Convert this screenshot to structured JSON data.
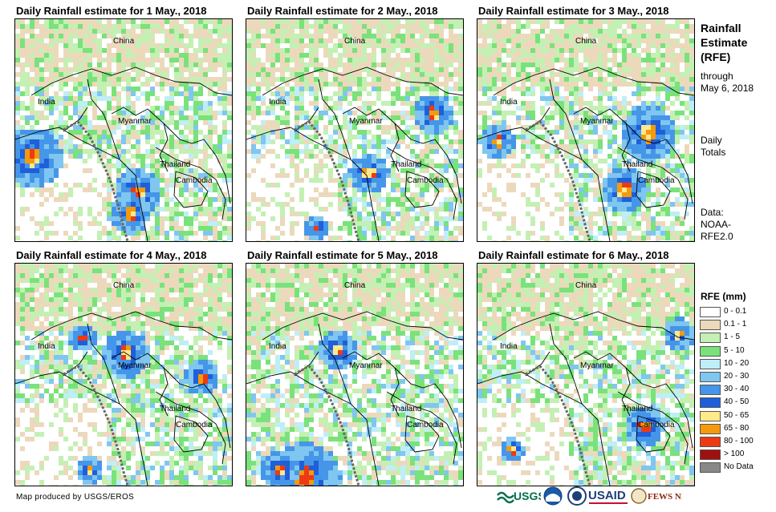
{
  "panels": [
    {
      "title": "Daily Rainfall estimate for 1 May., 2018",
      "seed": 1,
      "heavy": [
        [
          18,
          170,
          38
        ],
        [
          150,
          215,
          30
        ],
        [
          140,
          240,
          25
        ]
      ]
    },
    {
      "title": "Daily Rainfall estimate for 2 May., 2018",
      "seed": 2,
      "heavy": [
        [
          230,
          115,
          25
        ],
        [
          150,
          190,
          25
        ],
        [
          85,
          258,
          15
        ]
      ]
    },
    {
      "title": "Daily Rainfall estimate for 3 May., 2018",
      "seed": 3,
      "heavy": [
        [
          22,
          150,
          22
        ],
        [
          210,
          140,
          35
        ],
        [
          180,
          210,
          30
        ]
      ]
    },
    {
      "title": "Daily Rainfall estimate for 4 May., 2018",
      "seed": 4,
      "heavy": [
        [
          135,
          110,
          30
        ],
        [
          80,
          90,
          18
        ],
        [
          90,
          255,
          18
        ],
        [
          230,
          140,
          22
        ]
      ]
    },
    {
      "title": "Daily Rainfall estimate for 5 May., 2018",
      "seed": 5,
      "heavy": [
        [
          110,
          105,
          25
        ],
        [
          70,
          265,
          45
        ],
        [
          40,
          255,
          25
        ]
      ]
    },
    {
      "title": "Daily Rainfall estimate for 6 May., 2018",
      "seed": 6,
      "heavy": [
        [
          248,
          85,
          20
        ],
        [
          205,
          200,
          25
        ],
        [
          40,
          230,
          15
        ]
      ]
    }
  ],
  "map_labels": {
    "china": "China",
    "india": "India",
    "myanmar": "Myanmar",
    "thailand": "Thailand",
    "cambodia": "Cambodia"
  },
  "sidebar": {
    "title_line1": "Rainfall",
    "title_line2": "Estimate",
    "title_line3": "(RFE)",
    "through": "through",
    "date": "May 6, 2018",
    "daily": "Daily",
    "totals": "Totals",
    "data_label": "Data:",
    "data_source1": "NOAA-",
    "data_source2": "RFE2.0"
  },
  "legend": {
    "title": "RFE (mm)",
    "items": [
      {
        "label": "0 - 0.1",
        "color": "#ffffff"
      },
      {
        "label": "0.1 - 1",
        "color": "#ecd9bc"
      },
      {
        "label": "1 - 5",
        "color": "#c4f0b4"
      },
      {
        "label": "5 - 10",
        "color": "#7ae27a"
      },
      {
        "label": "10 - 20",
        "color": "#bfeef8"
      },
      {
        "label": "20 - 30",
        "color": "#7fc6f0"
      },
      {
        "label": "30 - 40",
        "color": "#4596e8"
      },
      {
        "label": "40 - 50",
        "color": "#1f5fd9"
      },
      {
        "label": "50 - 65",
        "color": "#ffe98a"
      },
      {
        "label": "65 - 80",
        "color": "#f59a0c"
      },
      {
        "label": "80 - 100",
        "color": "#ee3a12"
      },
      {
        "label": "> 100",
        "color": "#a01010"
      },
      {
        "label": "No Data",
        "color": "#888888"
      }
    ]
  },
  "credit": "Map produced by USGS/EROS",
  "logos": {
    "usgs": "USGS",
    "noaa": "NOAA",
    "usaid": "USAID",
    "fewsnet": "FEWS NET"
  }
}
